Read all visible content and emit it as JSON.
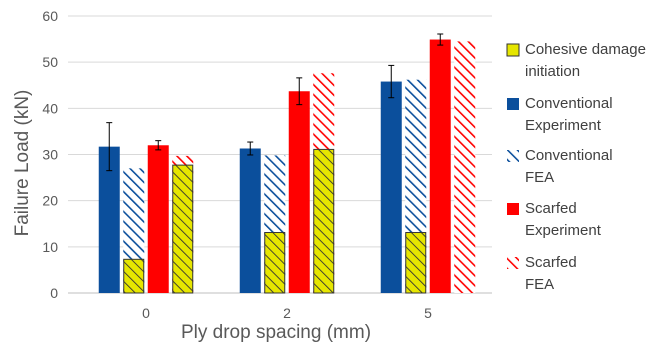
{
  "chart_data": {
    "type": "bar",
    "title": "",
    "xlabel": "Ply drop spacing (mm)",
    "ylabel": "Failure Load (kN)",
    "ylim": [
      0,
      60
    ],
    "yticks": [
      0,
      10,
      20,
      30,
      40,
      50,
      60
    ],
    "grid": true,
    "legend_position": "right",
    "categories": [
      "0",
      "2",
      "5"
    ],
    "series": [
      {
        "name": "Conventional Experiment",
        "legend_lines": [
          "Conventional",
          "Experiment"
        ],
        "style": "solid",
        "color": "#0B4F9C",
        "values": [
          31.7,
          31.3,
          45.8
        ],
        "errors": [
          5.2,
          1.4,
          3.5
        ]
      },
      {
        "name": "Conventional FEA",
        "legend_lines": [
          "Conventional",
          "FEA"
        ],
        "style": "hatched",
        "color": "#0B4F9C",
        "values": [
          27.0,
          29.8,
          46.2
        ]
      },
      {
        "name": "Scarfed Experiment",
        "legend_lines": [
          "Scarfed",
          "Experiment"
        ],
        "style": "solid",
        "color": "#FF0000",
        "values": [
          32.0,
          43.7,
          54.9
        ],
        "errors": [
          1.0,
          2.9,
          1.2
        ]
      },
      {
        "name": "Scarfed FEA",
        "legend_lines": [
          "Scarfed",
          "FEA"
        ],
        "style": "hatched",
        "color": "#FF0000",
        "values": [
          29.7,
          47.6,
          54.5
        ]
      }
    ],
    "cohesive_damage_initiation": {
      "name": "Cohesive damage initiation",
      "legend_lines": [
        "Cohesive damage",
        "initiation"
      ],
      "color": "#E6E600",
      "overlay_on": [
        "Conventional FEA",
        "Scarfed FEA"
      ],
      "values": {
        "Conventional FEA": [
          7.3,
          13.1,
          13.1
        ],
        "Scarfed FEA": [
          27.7,
          31.1,
          null
        ]
      }
    }
  }
}
